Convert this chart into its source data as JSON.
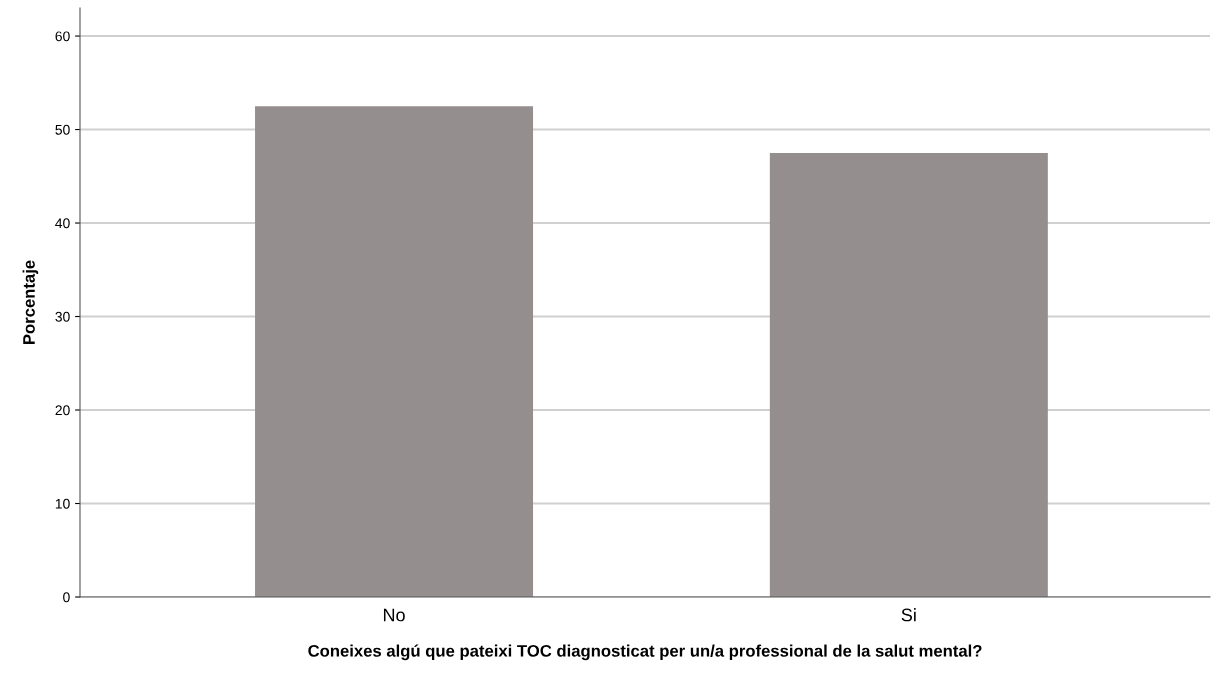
{
  "chart_data": {
    "type": "bar",
    "xlabel": "Coneixes algú que pateixi TOC diagnosticat per un/a professional de la salut mental?",
    "ylabel": "Porcentaje",
    "categories": [
      "No",
      "Si"
    ],
    "values": [
      52.5,
      47.5
    ],
    "color": "#948f8e",
    "ylim": [
      0,
      63
    ],
    "yticks": [
      0,
      10,
      20,
      30,
      40,
      50,
      60
    ],
    "grid": "y"
  }
}
